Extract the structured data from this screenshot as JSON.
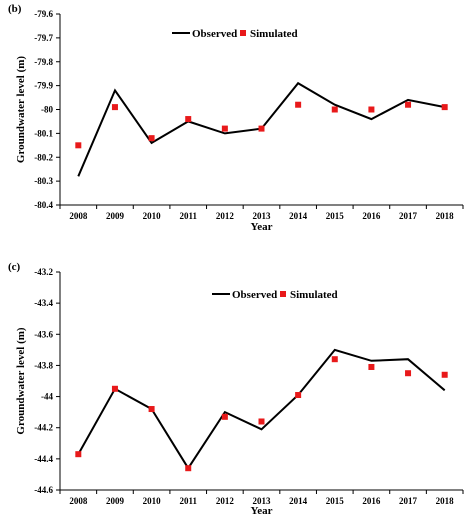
{
  "chart_data": [
    {
      "type": "line",
      "panel_label": "(b)",
      "xlabel": "Year",
      "ylabel": "Groundwater level (m)",
      "x": [
        2008,
        2009,
        2010,
        2011,
        2012,
        2013,
        2014,
        2015,
        2016,
        2017,
        2018
      ],
      "ylim": [
        -80.4,
        -79.6
      ],
      "yticks": [
        "-79.6",
        "-79.7",
        "-79.8",
        "-79.9",
        "-80",
        "-80.1",
        "-80.2",
        "-80.3",
        "-80.4"
      ],
      "legend_position": "top-center",
      "series": [
        {
          "name": "Observed",
          "style": "line",
          "color": "#000000",
          "values": [
            -80.28,
            -79.92,
            -80.14,
            -80.05,
            -80.1,
            -80.08,
            -79.89,
            -79.98,
            -80.04,
            -79.96,
            -79.99
          ]
        },
        {
          "name": "Simulated",
          "style": "marker",
          "color": "#e8191a",
          "values": [
            -80.15,
            -79.99,
            -80.12,
            -80.04,
            -80.08,
            -80.08,
            -79.98,
            -80.0,
            -80.0,
            -79.98,
            -79.99
          ]
        }
      ]
    },
    {
      "type": "line",
      "panel_label": "(c)",
      "xlabel": "Year",
      "ylabel": "Groundwater level (m)",
      "x": [
        2008,
        2009,
        2010,
        2011,
        2012,
        2013,
        2014,
        2015,
        2016,
        2017,
        2018
      ],
      "ylim": [
        -44.6,
        -43.2
      ],
      "yticks": [
        "-43.2",
        "-43.4",
        "-43.6",
        "-43.8",
        "-44",
        "-44.2",
        "-44.4",
        "-44.6"
      ],
      "legend_position": "top-center",
      "series": [
        {
          "name": "Observed",
          "style": "line",
          "color": "#000000",
          "values": [
            -44.37,
            -43.95,
            -44.08,
            -44.46,
            -44.1,
            -44.21,
            -43.99,
            -43.7,
            -43.77,
            -43.76,
            -43.96
          ]
        },
        {
          "name": "Simulated",
          "style": "marker",
          "color": "#e8191a",
          "values": [
            -44.37,
            -43.95,
            -44.08,
            -44.46,
            -44.13,
            -44.16,
            -43.99,
            -43.76,
            -43.81,
            -43.85,
            -43.86
          ]
        }
      ]
    }
  ]
}
